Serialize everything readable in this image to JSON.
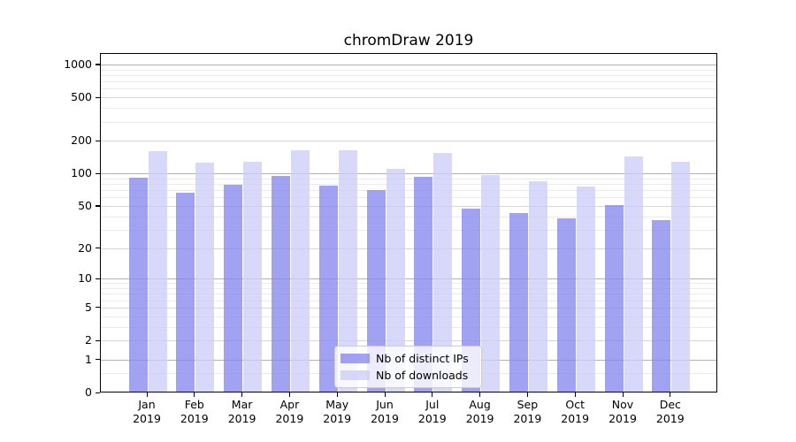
{
  "chart_data": {
    "type": "bar",
    "title": "chromDraw 2019",
    "year": "2019",
    "categories": [
      "Jan",
      "Feb",
      "Mar",
      "Apr",
      "May",
      "Jun",
      "Jul",
      "Aug",
      "Sep",
      "Oct",
      "Nov",
      "Dec"
    ],
    "series": [
      {
        "name": "Nb of distinct IPs",
        "color": "#8888ee",
        "values": [
          91,
          66,
          78,
          95,
          77,
          70,
          93,
          47,
          43,
          38,
          51,
          37
        ]
      },
      {
        "name": "Nb of downloads",
        "color": "#cdcdf8",
        "values": [
          160,
          125,
          128,
          163,
          163,
          110,
          155,
          97,
          85,
          75,
          144,
          127
        ]
      }
    ],
    "y_ticks": [
      0,
      1,
      2,
      5,
      10,
      20,
      50,
      100,
      200,
      500,
      1000
    ],
    "y_scale": "log1p",
    "xlabel": "",
    "ylabel": "",
    "grid": true,
    "legend_position": "bottom-center",
    "colors": {
      "major_grid": "#b2b2b2",
      "mid_grid": "#d6d6d6",
      "minor_grid": "#ebebeb",
      "axis": "#000000",
      "background": "#ffffff"
    }
  }
}
